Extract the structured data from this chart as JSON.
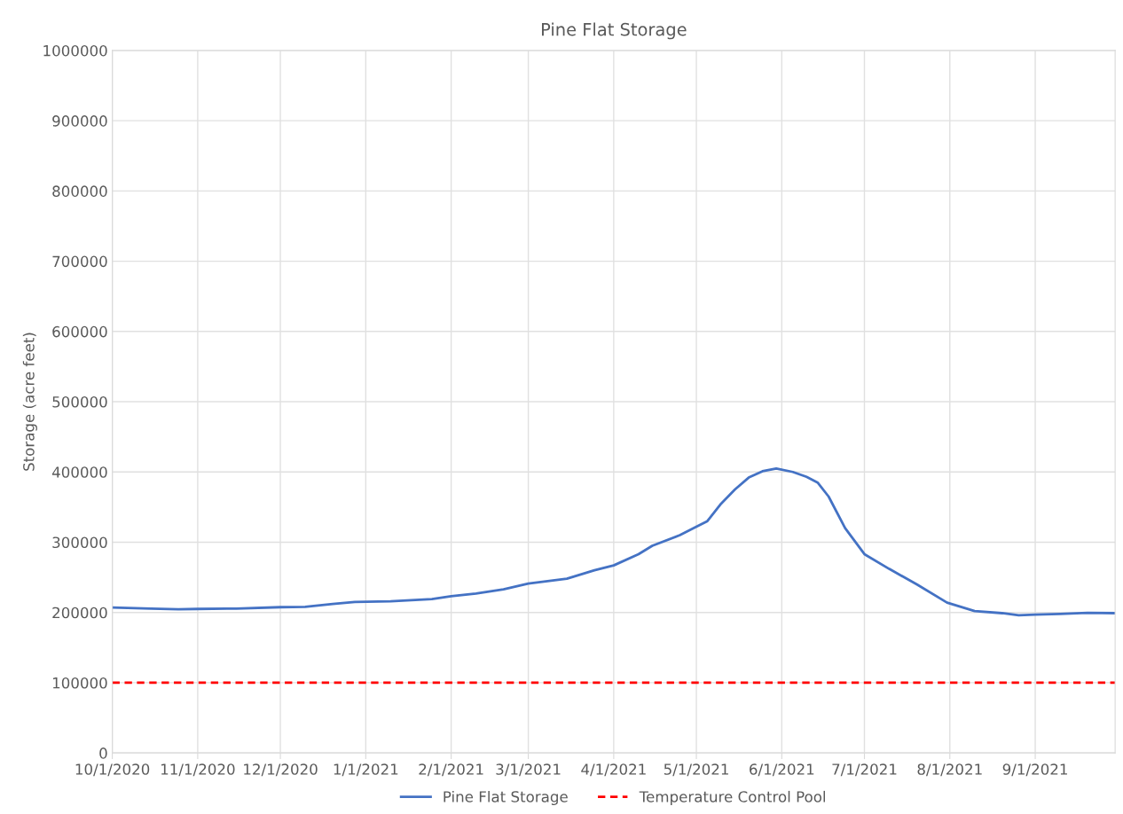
{
  "chart_data": {
    "type": "line",
    "title": "Pine Flat Storage",
    "ylabel": "Storage (acre feet)",
    "xlim": [
      "2020-10-01",
      "2021-09-30"
    ],
    "xticks": [
      {
        "value": "2020-10-01",
        "label": "10/1/2020"
      },
      {
        "value": "2020-11-01",
        "label": "11/1/2020"
      },
      {
        "value": "2020-12-01",
        "label": "12/1/2020"
      },
      {
        "value": "2021-01-01",
        "label": "1/1/2021"
      },
      {
        "value": "2021-02-01",
        "label": "2/1/2021"
      },
      {
        "value": "2021-03-01",
        "label": "3/1/2021"
      },
      {
        "value": "2021-04-01",
        "label": "4/1/2021"
      },
      {
        "value": "2021-05-01",
        "label": "5/1/2021"
      },
      {
        "value": "2021-06-01",
        "label": "6/1/2021"
      },
      {
        "value": "2021-07-01",
        "label": "7/1/2021"
      },
      {
        "value": "2021-08-01",
        "label": "8/1/2021"
      },
      {
        "value": "2021-09-01",
        "label": "9/1/2021"
      }
    ],
    "ylim": [
      0,
      1000000
    ],
    "yticks": [
      0,
      100000,
      200000,
      300000,
      400000,
      500000,
      600000,
      700000,
      800000,
      900000,
      1000000
    ],
    "grid": true,
    "legend": "bottom",
    "marker": "none",
    "series": [
      {
        "name": "Pine Flat Storage",
        "color": "#4472c4",
        "line_style": "solid",
        "x": [
          "2020-10-01",
          "2020-10-15",
          "2020-10-25",
          "2020-11-01",
          "2020-11-15",
          "2020-12-01",
          "2020-12-10",
          "2020-12-20",
          "2020-12-28",
          "2021-01-10",
          "2021-01-25",
          "2021-02-01",
          "2021-02-10",
          "2021-02-20",
          "2021-03-01",
          "2021-03-15",
          "2021-03-25",
          "2021-04-01",
          "2021-04-10",
          "2021-04-15",
          "2021-04-25",
          "2021-05-01",
          "2021-05-05",
          "2021-05-10",
          "2021-05-15",
          "2021-05-20",
          "2021-05-25",
          "2021-05-30",
          "2021-06-05",
          "2021-06-10",
          "2021-06-14",
          "2021-06-18",
          "2021-06-24",
          "2021-07-01",
          "2021-07-10",
          "2021-07-20",
          "2021-07-31",
          "2021-08-10",
          "2021-08-20",
          "2021-08-26",
          "2021-09-01",
          "2021-09-10",
          "2021-09-20",
          "2021-09-30"
        ],
        "values": [
          207000,
          205500,
          204500,
          205000,
          205500,
          207500,
          208000,
          212000,
          215000,
          216000,
          219000,
          223000,
          227000,
          233000,
          241000,
          248000,
          260000,
          267000,
          283000,
          295000,
          310000,
          322000,
          330000,
          355000,
          375000,
          392000,
          401000,
          405000,
          400000,
          393000,
          385000,
          365000,
          320000,
          283000,
          262000,
          240000,
          214000,
          202000,
          199000,
          196000,
          197000,
          198000,
          199500,
          199000
        ]
      },
      {
        "name": "Temperature Control Pool",
        "color": "#ff0000",
        "line_style": "dashed",
        "x": [
          "2020-10-01",
          "2021-09-30"
        ],
        "values": [
          100000,
          100000
        ]
      }
    ]
  }
}
